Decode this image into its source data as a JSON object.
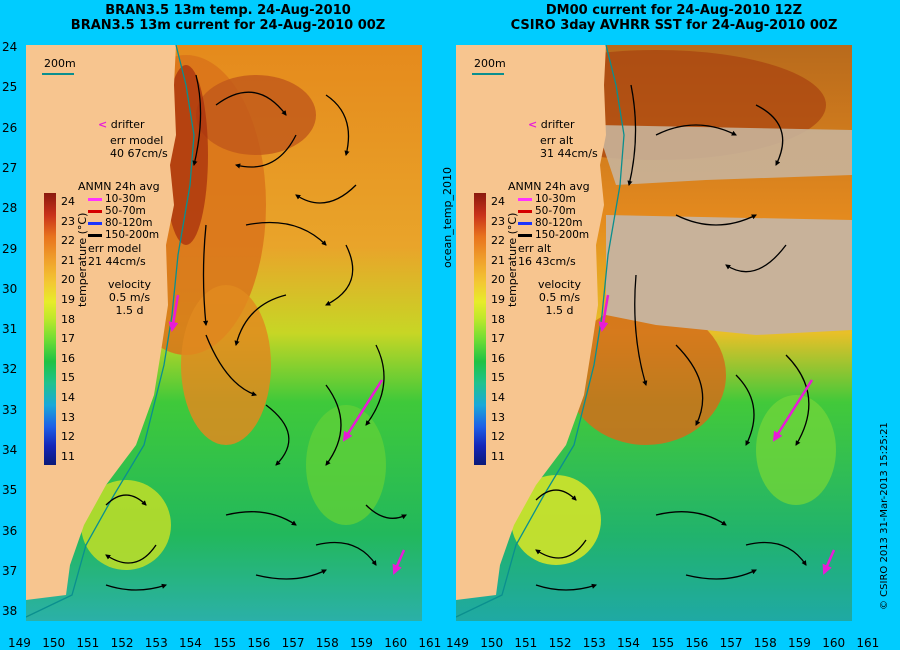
{
  "left_panel": {
    "title_line1": "BRAN3.5 13m temp. 24-Aug-2010",
    "title_line2": "BRAN3.5 13m current for 24-Aug-2010 00Z",
    "scale_label": "200m",
    "drifter_label": "drifter",
    "err_line1": "err model",
    "err_line2": "40 67cm/s",
    "legend_title": "ANMN 24h avg",
    "legend_items": [
      "10-30m",
      "50-70m",
      "80-120m",
      "150-200m"
    ],
    "legend_colors": [
      "#ff33ff",
      "#d40000",
      "#1a35ff",
      "#000000"
    ],
    "err2_line1": "err model",
    "err2_line2": "21 44cm/s",
    "velocity_line1": "velocity",
    "velocity_line2": "0.5 m/s",
    "velocity_line3": "1.5 d",
    "colorbar_label": "temperature (°C)",
    "colorbar_ticks": [
      "24",
      "23",
      "22",
      "21",
      "20",
      "19",
      "18",
      "17",
      "16",
      "15",
      "14",
      "13",
      "12",
      "11"
    ]
  },
  "right_panel": {
    "title_line1": "DM00 current for 24-Aug-2010 12Z",
    "title_line2": "CSIRO 3day AVHRR SST for 24-Aug-2010 00Z",
    "scale_label": "200m",
    "drifter_label": "drifter",
    "err_line1": "err alt",
    "err_line2": "31 44cm/s",
    "legend_title": "ANMN 24h avg",
    "legend_items": [
      "10-30m",
      "50-70m",
      "80-120m",
      "150-200m"
    ],
    "err2_line1": "err alt",
    "err2_line2": "16 43cm/s",
    "velocity_line1": "velocity",
    "velocity_line2": "0.5 m/s",
    "velocity_line3": "1.5 d",
    "colorbar_label": "temperature (°C)",
    "colorbar_ticks": [
      "24",
      "23",
      "22",
      "21",
      "20",
      "19",
      "18",
      "17",
      "16",
      "15",
      "14",
      "13",
      "12",
      "11"
    ]
  },
  "y_axis_labels": [
    "24",
    "25",
    "26",
    "27",
    "28",
    "29",
    "30",
    "31",
    "32",
    "33",
    "34",
    "35",
    "36",
    "37",
    "38"
  ],
  "x_axis_left_labels": [
    "149",
    "150",
    "151",
    "152",
    "153",
    "154",
    "155",
    "156",
    "157",
    "158",
    "159",
    "160",
    "161"
  ],
  "x_axis_right_labels": [
    "149",
    "150",
    "151",
    "152",
    "153",
    "154",
    "155",
    "156",
    "157",
    "158",
    "159",
    "160",
    "161"
  ],
  "middle_label": "ocean_temp_2010",
  "copyright": "© CSIRO 2013   31-Mar-2013 15:25:21",
  "colors": {
    "background": "#00ccff",
    "land": "#f7c58f",
    "cloud": "#c8b29a",
    "drifter": "#e81bd7",
    "isobath": "#0a8f8f"
  }
}
